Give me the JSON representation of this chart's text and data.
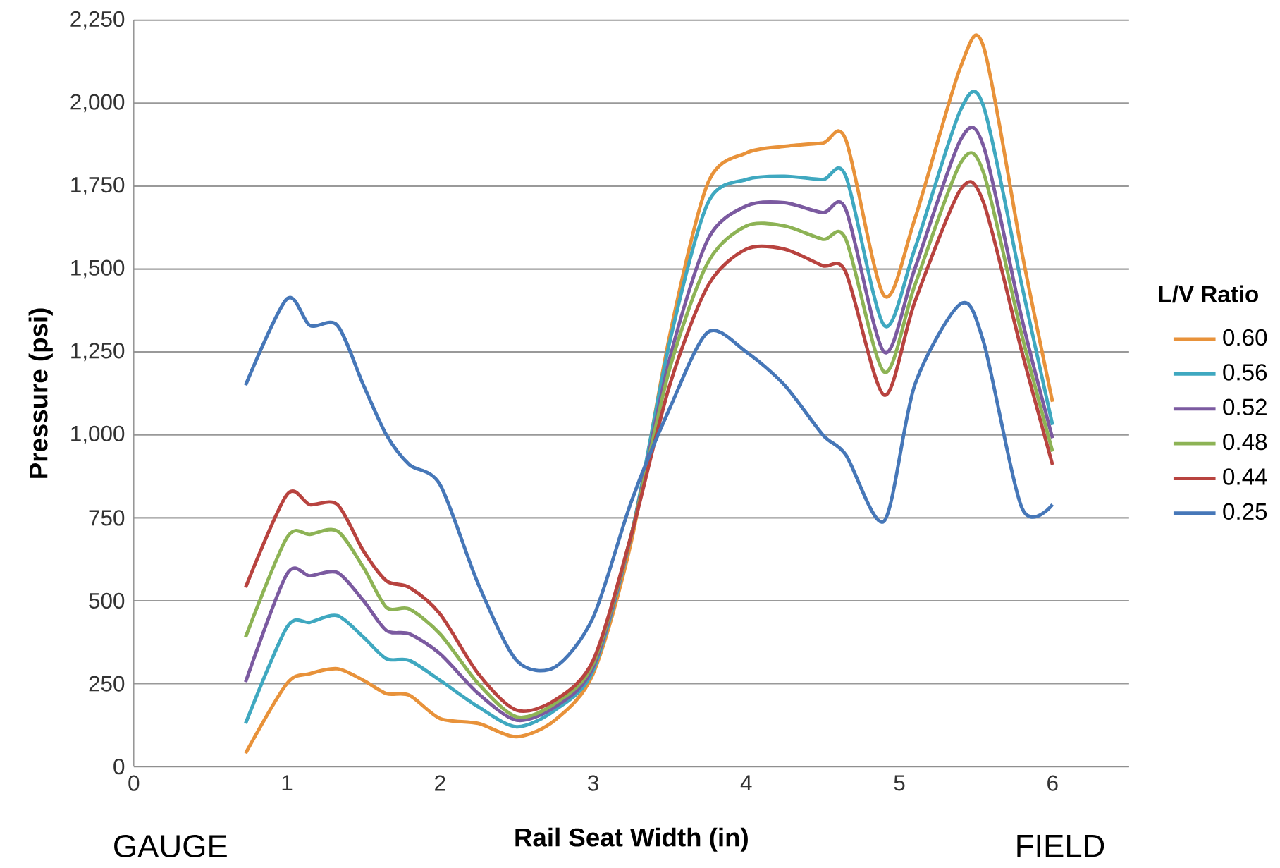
{
  "chart_data": {
    "type": "line",
    "xlabel": "Rail Seat Width (in)",
    "ylabel": "Pressure (psi)",
    "legend_title": "L/V Ratio",
    "legend": "right",
    "grid": "y",
    "marker": "none",
    "line_style": "solid",
    "xlim": [
      0,
      6.5
    ],
    "xticks": [
      0,
      1,
      2,
      3,
      4,
      5,
      6
    ],
    "ylim": [
      0,
      2250
    ],
    "yticks": [
      0,
      250,
      500,
      750,
      {
        "value": 1000,
        "label": "1,000"
      },
      {
        "value": 1250,
        "label": "1,250"
      },
      {
        "value": 1500,
        "label": "1,500"
      },
      {
        "value": 1750,
        "label": "1,750"
      },
      {
        "value": 2000,
        "label": "2,000"
      },
      {
        "value": 2250,
        "label": "2,250"
      }
    ],
    "annotations": [
      "GAUGE",
      "FIELD"
    ],
    "x": [
      0.73,
      1.0,
      1.15,
      1.33,
      1.5,
      1.65,
      1.8,
      2.0,
      2.25,
      2.5,
      2.75,
      3.0,
      3.25,
      3.5,
      3.75,
      4.0,
      4.25,
      4.5,
      4.65,
      4.9,
      5.1,
      5.4,
      5.55,
      5.8,
      6.0
    ],
    "series": [
      {
        "name": "0.60",
        "color": "#e8923a",
        "values": [
          40,
          250,
          280,
          295,
          260,
          220,
          215,
          145,
          130,
          90,
          140,
          280,
          680,
          1300,
          1760,
          1850,
          1870,
          1880,
          1890,
          1420,
          1650,
          2110,
          2170,
          1550,
          1100
        ]
      },
      {
        "name": "0.56",
        "color": "#3fa8c0",
        "values": [
          130,
          420,
          435,
          455,
          390,
          325,
          320,
          260,
          180,
          120,
          170,
          290,
          700,
          1280,
          1700,
          1770,
          1780,
          1770,
          1780,
          1330,
          1560,
          1980,
          1990,
          1450,
          1030
        ]
      },
      {
        "name": "0.52",
        "color": "#7b5aa0",
        "values": [
          255,
          580,
          575,
          585,
          500,
          410,
          400,
          340,
          220,
          140,
          180,
          300,
          700,
          1230,
          1590,
          1690,
          1700,
          1670,
          1680,
          1250,
          1500,
          1890,
          1870,
          1350,
          990
        ]
      },
      {
        "name": "0.48",
        "color": "#8db355",
        "values": [
          390,
          690,
          700,
          710,
          600,
          480,
          475,
          400,
          250,
          150,
          190,
          310,
          700,
          1200,
          1520,
          1630,
          1630,
          1590,
          1590,
          1190,
          1450,
          1820,
          1790,
          1300,
          950
        ]
      },
      {
        "name": "0.44",
        "color": "#b8433f",
        "values": [
          540,
          820,
          790,
          790,
          650,
          560,
          540,
          460,
          280,
          170,
          200,
          320,
          700,
          1150,
          1450,
          1560,
          1560,
          1510,
          1490,
          1120,
          1400,
          1740,
          1700,
          1250,
          910
        ]
      },
      {
        "name": "0.25",
        "color": "#4677b8",
        "values": [
          1150,
          1410,
          1330,
          1330,
          1150,
          1000,
          910,
          850,
          550,
          320,
          300,
          450,
          800,
          1080,
          1310,
          1250,
          1150,
          1000,
          940,
          740,
          1150,
          1395,
          1280,
          780,
          790
        ]
      }
    ]
  }
}
